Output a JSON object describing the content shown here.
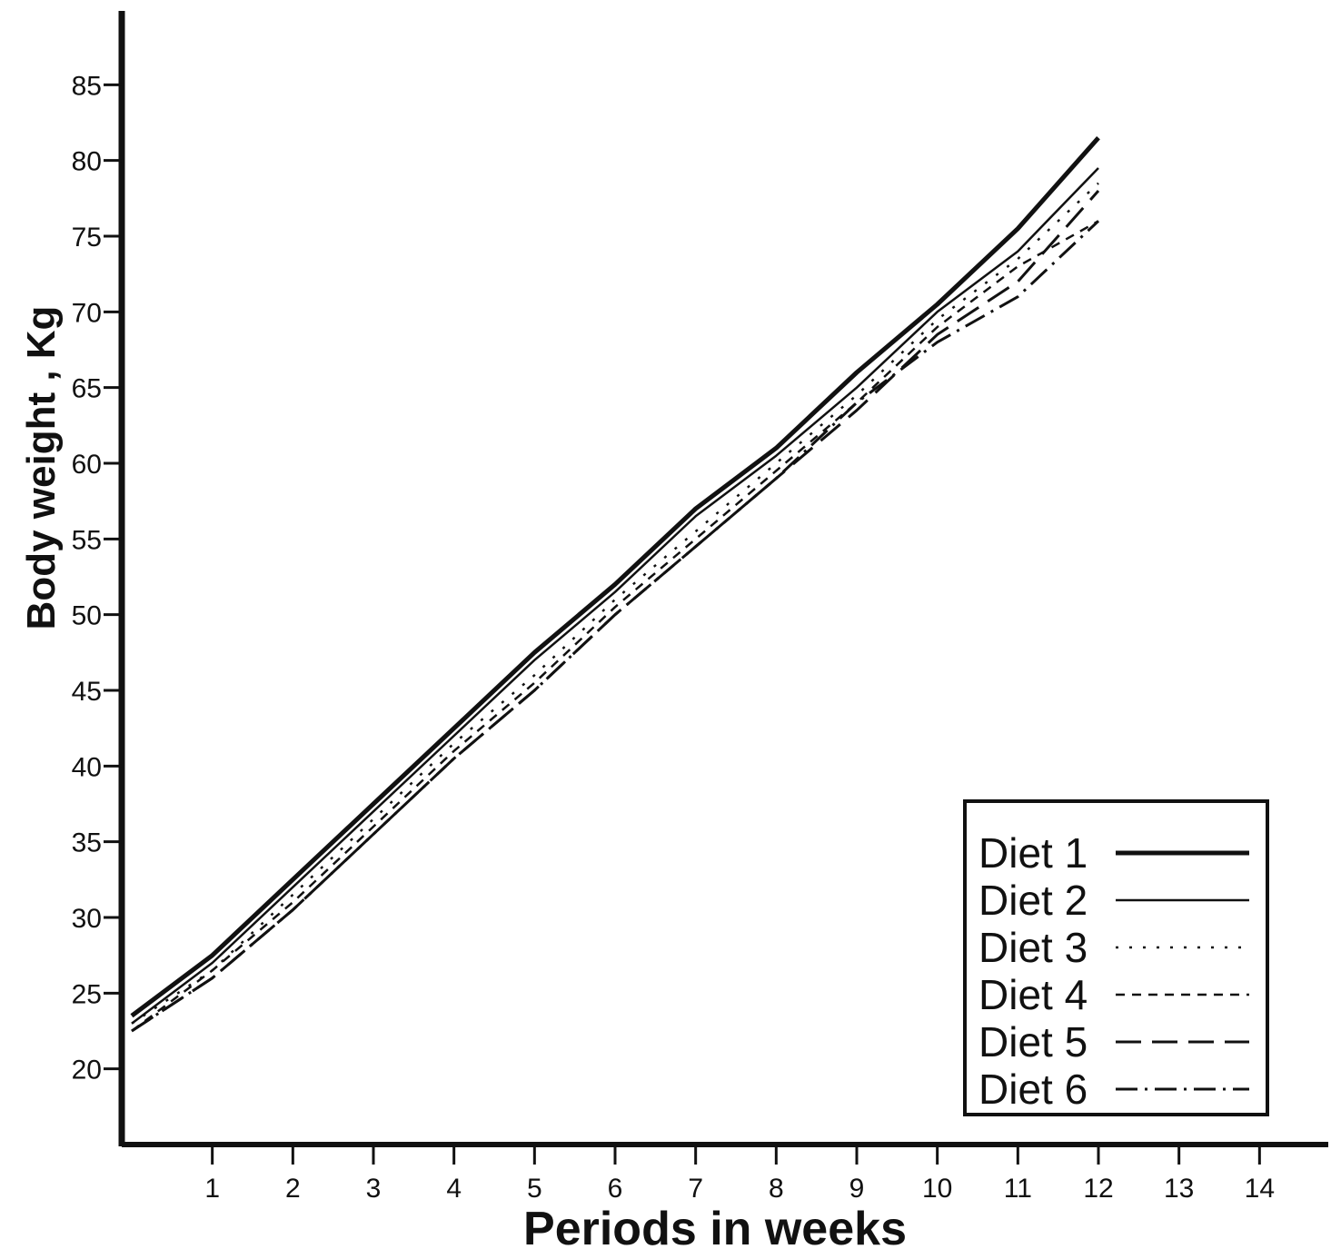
{
  "chart_data": {
    "type": "line",
    "xlabel": "Periods in weeks",
    "ylabel": "Body weight , Kg",
    "xlim": [
      0,
      15
    ],
    "ylim": [
      15,
      90
    ],
    "x_ticks": [
      1,
      2,
      3,
      4,
      5,
      6,
      7,
      8,
      9,
      10,
      11,
      12,
      13,
      14
    ],
    "x_tick_labels": [
      "1",
      "2",
      "3",
      "4",
      "5",
      "6",
      "7",
      "8",
      "9",
      "10",
      "11",
      "12",
      "13",
      "14"
    ],
    "y_ticks": [
      20,
      25,
      30,
      35,
      40,
      45,
      50,
      55,
      60,
      65,
      70,
      75,
      80,
      85
    ],
    "y_tick_labels": [
      "20",
      "25",
      "30",
      "35",
      "40",
      "45",
      "50",
      "55",
      "60",
      "65",
      "70",
      "75",
      "80",
      "85"
    ],
    "grid": false,
    "legend_position": "bottom-right",
    "x": [
      0,
      1,
      2,
      3,
      4,
      5,
      6,
      7,
      8,
      9,
      10,
      11,
      12
    ],
    "series": [
      {
        "name": "Diet 1",
        "style": "solid-thick",
        "values": [
          23.5,
          27.5,
          32.5,
          37.5,
          42.5,
          47.5,
          52,
          57,
          61,
          66,
          70.5,
          75.5,
          81.5
        ]
      },
      {
        "name": "Diet 2",
        "style": "solid-thin",
        "values": [
          23,
          27,
          32,
          37,
          42,
          47,
          51.5,
          56.5,
          60.5,
          65,
          70,
          74,
          79.5
        ]
      },
      {
        "name": "Diet 3",
        "style": "dotted",
        "values": [
          23,
          26.5,
          31.5,
          36.5,
          41.5,
          46,
          51,
          55.5,
          60,
          64.5,
          69.5,
          73.5,
          78.5
        ]
      },
      {
        "name": "Diet 4",
        "style": "short-dash",
        "values": [
          22.5,
          26.5,
          31,
          36,
          41,
          45.5,
          50.5,
          55,
          59.5,
          64,
          69,
          73,
          76
        ]
      },
      {
        "name": "Diet 5",
        "style": "long-dash",
        "values": [
          22.5,
          26,
          30.5,
          35.5,
          40.5,
          45,
          50,
          54.5,
          59,
          63.5,
          68.5,
          72,
          78
        ]
      },
      {
        "name": "Diet 6",
        "style": "dash-dot",
        "values": [
          22.5,
          26,
          30.5,
          35.5,
          40.5,
          45,
          50,
          54.5,
          59,
          64,
          68,
          71,
          76
        ]
      }
    ]
  }
}
